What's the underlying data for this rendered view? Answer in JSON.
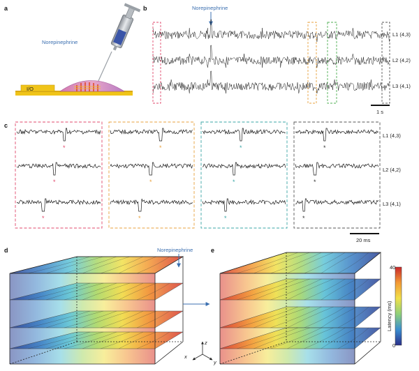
{
  "panels": {
    "a": "a",
    "b": "b",
    "c": "c",
    "d": "d",
    "e": "e"
  },
  "panel_a": {
    "drug_label": "Norepinephrine",
    "io_label": "I/O"
  },
  "panel_b": {
    "drug_label": "Norepinephrine",
    "channels": [
      "L1 (4,3)",
      "L2 (4,2)",
      "L3 (4,1)"
    ],
    "scale_label": "1 s",
    "box_colors": [
      "#e0476b",
      "#e8a13c",
      "#4caf50",
      "#555555"
    ]
  },
  "panel_c": {
    "channels": [
      "L1 (4,3)",
      "L2 (4,2)",
      "L3 (4,1)"
    ],
    "scale_label": "20 ms",
    "box_colors": [
      "#e0476b",
      "#e8a13c",
      "#3aa6a6",
      "#555555"
    ],
    "star": "*"
  },
  "panel_d": {
    "drug_label": "Norepinephrine"
  },
  "panel_e": {
    "colorbar_max": "40",
    "colorbar_min": "0",
    "colorbar_label": "Latency (ms)"
  },
  "axes": {
    "x": "x",
    "y": "y",
    "z": "z"
  }
}
